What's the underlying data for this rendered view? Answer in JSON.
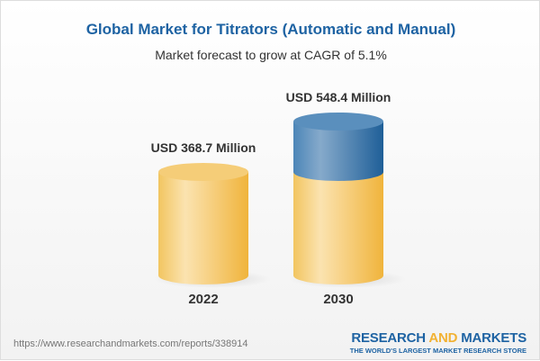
{
  "title": "Global Market for Titrators (Automatic and Manual)",
  "subtitle": "Market forecast to grow at CAGR of 5.1%",
  "chart_data": {
    "type": "bar",
    "style": "3d-cylinder",
    "categories": [
      "2022",
      "2030"
    ],
    "values": [
      368.7,
      548.4
    ],
    "data_labels": [
      "USD 368.7 Million",
      "USD 548.4 Million"
    ],
    "unit": "USD Million",
    "colors": {
      "base": "#f3c25c",
      "growth": "#3b79ad"
    }
  },
  "footer": {
    "url": "https://www.researchandmarkets.com/reports/338914",
    "logo_part1": "RESEARCH ",
    "logo_part2": "AND",
    "logo_part3": " MARKETS",
    "tagline": "THE WORLD'S LARGEST MARKET RESEARCH STORE"
  }
}
